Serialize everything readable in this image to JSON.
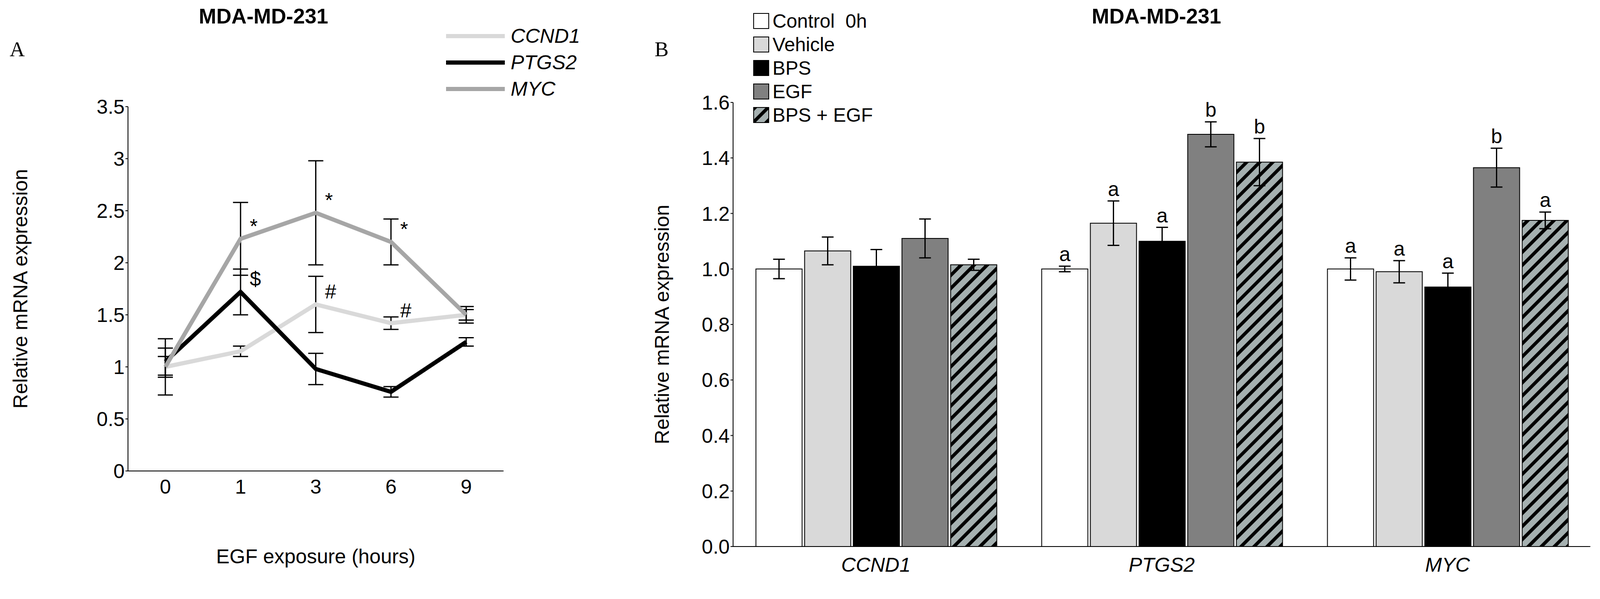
{
  "chart_data": [
    {
      "type": "line",
      "panel_label": "A",
      "title": "MDA-MD-231",
      "x_label": "EGF exposure (hours)",
      "y_label": "Relative mRNA expression",
      "categories": [
        "0",
        "1",
        "3",
        "6",
        "9"
      ],
      "ylim": [
        0,
        3.5
      ],
      "yticks": [
        0,
        0.5,
        1,
        1.5,
        2,
        2.5,
        3,
        3.5
      ],
      "grid": false,
      "legend": "upper right",
      "series": [
        {
          "name": "CCND1",
          "color": "#d9d9d9",
          "values": [
            1.0,
            1.15,
            1.6,
            1.42,
            1.5
          ],
          "errors": [
            0.1,
            0.05,
            0.27,
            0.06,
            0.05
          ],
          "significance": [
            null,
            null,
            "#",
            "#",
            null
          ]
        },
        {
          "name": "PTGS2",
          "color": "#000000",
          "values": [
            1.05,
            1.72,
            0.98,
            0.76,
            1.24
          ],
          "errors": [
            0.13,
            0.22,
            0.15,
            0.05,
            0.04
          ],
          "significance": [
            null,
            "$",
            null,
            null,
            null
          ]
        },
        {
          "name": "MYC",
          "color": "#a6a6a6",
          "values": [
            1.0,
            2.23,
            2.48,
            2.2,
            1.5
          ],
          "errors": [
            0.27,
            0.35,
            0.5,
            0.22,
            0.08
          ],
          "significance": [
            null,
            "*",
            "*",
            "*",
            null
          ]
        }
      ]
    },
    {
      "type": "bar",
      "panel_label": "B",
      "title": "MDA-MD-231",
      "y_label": "Relative mRNA expression",
      "categories": [
        "CCND1",
        "PTGS2",
        "MYC"
      ],
      "ylim": [
        0,
        1.6
      ],
      "yticks": [
        {
          "value": 0,
          "label": "0.0"
        },
        0.2,
        0.4,
        0.6,
        0.8,
        {
          "value": 1,
          "label": "1.0"
        },
        1.2,
        1.4,
        1.6
      ],
      "grid": false,
      "legend": "upper left",
      "series": [
        {
          "name": "Control  0h",
          "color": "#ffffff",
          "values": [
            1.0,
            1.0,
            1.0
          ],
          "errors": [
            0.035,
            0.01,
            0.04
          ],
          "significance": [
            null,
            "a",
            "a"
          ]
        },
        {
          "name": "Vehicle",
          "color": "#d9d9d9",
          "values": [
            1.065,
            1.165,
            0.99
          ],
          "errors": [
            0.05,
            0.08,
            0.04
          ],
          "significance": [
            null,
            "a",
            "a"
          ]
        },
        {
          "name": "BPS",
          "color": "#000000",
          "values": [
            1.01,
            1.1,
            0.935
          ],
          "errors": [
            0.06,
            0.05,
            0.05
          ],
          "significance": [
            null,
            "a",
            "a"
          ]
        },
        {
          "name": "EGF",
          "color": "#808080",
          "values": [
            1.11,
            1.485,
            1.365
          ],
          "errors": [
            0.07,
            0.045,
            0.07
          ],
          "significance": [
            null,
            "b",
            "b"
          ]
        },
        {
          "name": "BPS + EGF",
          "color": "#a5b0b0",
          "values": [
            1.015,
            1.385,
            1.175
          ],
          "errors": [
            0.02,
            0.085,
            0.03
          ],
          "significance": [
            null,
            "b",
            "a"
          ]
        }
      ]
    }
  ]
}
